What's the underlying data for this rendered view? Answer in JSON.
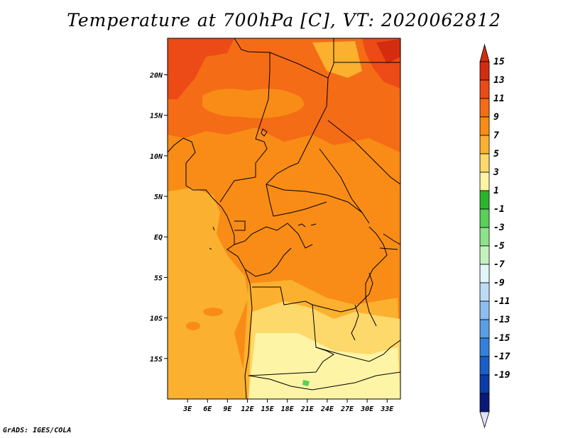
{
  "title": "Temperature at 700hPa [C], VT: 2020062812",
  "credit": "GrADS: IGES/COLA",
  "map": {
    "lon_range": [
      0,
      35
    ],
    "lat_range": [
      -20,
      24.5
    ],
    "x_ticks": [
      {
        "value": 3,
        "label": "3E"
      },
      {
        "value": 6,
        "label": "6E"
      },
      {
        "value": 9,
        "label": "9E"
      },
      {
        "value": 12,
        "label": "12E"
      },
      {
        "value": 15,
        "label": "15E"
      },
      {
        "value": 18,
        "label": "18E"
      },
      {
        "value": 21,
        "label": "21E"
      },
      {
        "value": 24,
        "label": "24E"
      },
      {
        "value": 27,
        "label": "27E"
      },
      {
        "value": 30,
        "label": "30E"
      },
      {
        "value": 33,
        "label": "33E"
      }
    ],
    "y_ticks": [
      {
        "value": 20,
        "label": "20N"
      },
      {
        "value": 15,
        "label": "15N"
      },
      {
        "value": 10,
        "label": "10N"
      },
      {
        "value": 5,
        "label": "5N"
      },
      {
        "value": 0,
        "label": "EQ"
      },
      {
        "value": -5,
        "label": "5S"
      },
      {
        "value": -10,
        "label": "10S"
      },
      {
        "value": -15,
        "label": "15S"
      }
    ]
  },
  "colorbar": {
    "labels": [
      "15",
      "13",
      "11",
      "9",
      "7",
      "5",
      "3",
      "1",
      "-1",
      "-3",
      "-5",
      "-7",
      "-9",
      "-11",
      "-13",
      "-15",
      "-17",
      "-19"
    ],
    "colors": [
      "#d42c0e",
      "#ec4a16",
      "#f46c16",
      "#f88c16",
      "#fbb030",
      "#fdd86a",
      "#fef4a6",
      "#2cb42c",
      "#58d05a",
      "#8ee28a",
      "#c4f2be",
      "#e2f6fa",
      "#bcdcf6",
      "#8cbef0",
      "#5a9ee6",
      "#3680dc",
      "#1a5ec8",
      "#0c3ca8",
      "#0a1878"
    ],
    "triangle_top": "#d42c0e",
    "triangle_bottom": "#e0e0f8"
  }
}
